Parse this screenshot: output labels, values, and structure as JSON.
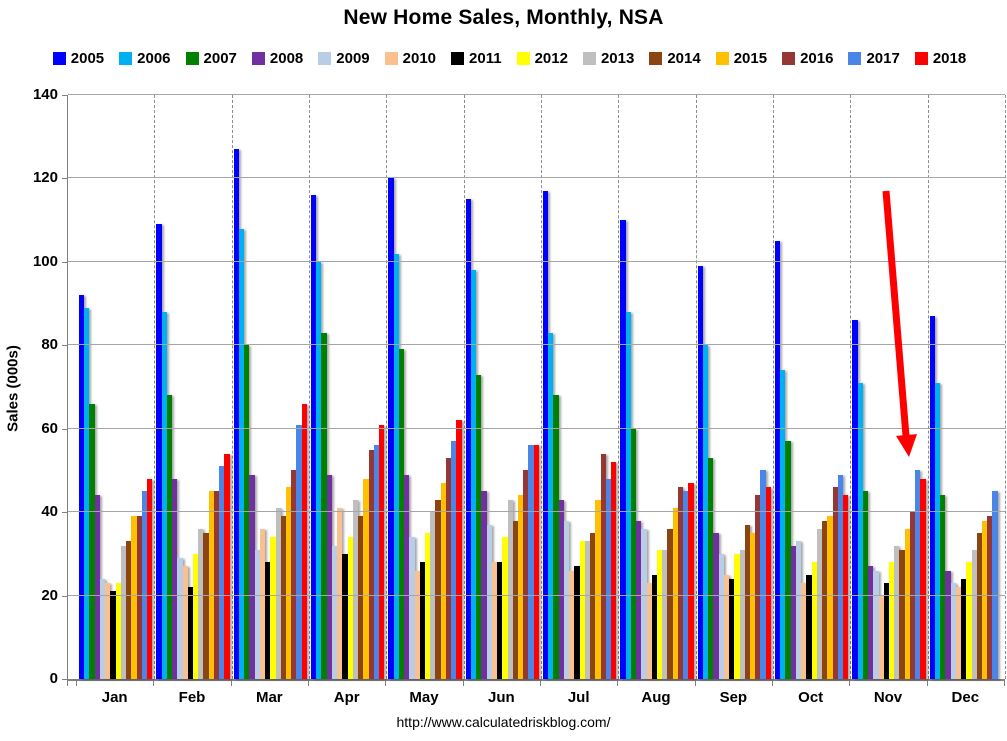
{
  "page": {
    "title": "New Home Sales, Monthly, NSA",
    "footer_url": "http://www.calculatedriskblog.com/"
  },
  "chart_data": {
    "type": "bar",
    "title": "New Home Sales, Monthly, NSA",
    "xlabel": "",
    "ylabel": "Sales (000s)",
    "ylim": [
      0,
      140
    ],
    "yticks": [
      0,
      20,
      40,
      60,
      80,
      100,
      120,
      140
    ],
    "legend_position": "top",
    "grid": {
      "horizontal": "solid",
      "vertical": "dashed-month-separators"
    },
    "categories": [
      "Jan",
      "Feb",
      "Mar",
      "Apr",
      "May",
      "Jun",
      "Jul",
      "Aug",
      "Sep",
      "Oct",
      "Nov",
      "Dec"
    ],
    "series": [
      {
        "name": "2005",
        "color": "#0000FF",
        "values": [
          92,
          109,
          127,
          116,
          120,
          115,
          117,
          110,
          99,
          105,
          86,
          87
        ]
      },
      {
        "name": "2006",
        "color": "#00B0F0",
        "values": [
          89,
          88,
          108,
          100,
          102,
          98,
          83,
          88,
          80,
          74,
          71,
          71
        ]
      },
      {
        "name": "2007",
        "color": "#008000",
        "values": [
          66,
          68,
          80,
          83,
          79,
          73,
          68,
          60,
          53,
          57,
          45,
          44
        ]
      },
      {
        "name": "2008",
        "color": "#7030A0",
        "values": [
          44,
          48,
          49,
          49,
          49,
          45,
          43,
          38,
          35,
          32,
          27,
          26
        ]
      },
      {
        "name": "2009",
        "color": "#B9CDE5",
        "values": [
          24,
          29,
          31,
          32,
          34,
          37,
          38,
          36,
          30,
          33,
          26,
          23
        ]
      },
      {
        "name": "2010",
        "color": "#FAC090",
        "values": [
          23,
          27,
          36,
          41,
          26,
          28,
          26,
          23,
          25,
          23,
          20,
          22
        ]
      },
      {
        "name": "2011",
        "color": "#000000",
        "values": [
          21,
          22,
          28,
          30,
          28,
          28,
          27,
          25,
          24,
          25,
          23,
          24
        ]
      },
      {
        "name": "2012",
        "color": "#FFFF00",
        "values": [
          23,
          30,
          34,
          34,
          35,
          34,
          33,
          31,
          30,
          28,
          28,
          28
        ]
      },
      {
        "name": "2013",
        "color": "#BFBFBF",
        "values": [
          32,
          36,
          41,
          43,
          40,
          43,
          33,
          31,
          31,
          36,
          32,
          31
        ]
      },
      {
        "name": "2014",
        "color": "#8B4513",
        "values": [
          33,
          35,
          39,
          39,
          43,
          38,
          35,
          36,
          37,
          38,
          31,
          35
        ]
      },
      {
        "name": "2015",
        "color": "#FFC000",
        "values": [
          39,
          45,
          46,
          48,
          47,
          44,
          43,
          41,
          35,
          39,
          36,
          38
        ]
      },
      {
        "name": "2016",
        "color": "#953735",
        "values": [
          39,
          45,
          50,
          55,
          53,
          50,
          54,
          46,
          44,
          46,
          40,
          39
        ]
      },
      {
        "name": "2017",
        "color": "#4A86E8",
        "values": [
          45,
          51,
          61,
          56,
          57,
          56,
          48,
          45,
          50,
          49,
          50,
          45
        ]
      },
      {
        "name": "2018",
        "color": "#FF0000",
        "values": [
          48,
          54,
          66,
          61,
          62,
          56,
          52,
          47,
          46,
          44,
          48,
          null
        ]
      }
    ],
    "annotation": {
      "type": "arrow",
      "color": "#FF0000",
      "points_at": "Nov 2017 vs Nov 2018 bars"
    },
    "footer": "http://www.calculatedriskblog.com/"
  }
}
